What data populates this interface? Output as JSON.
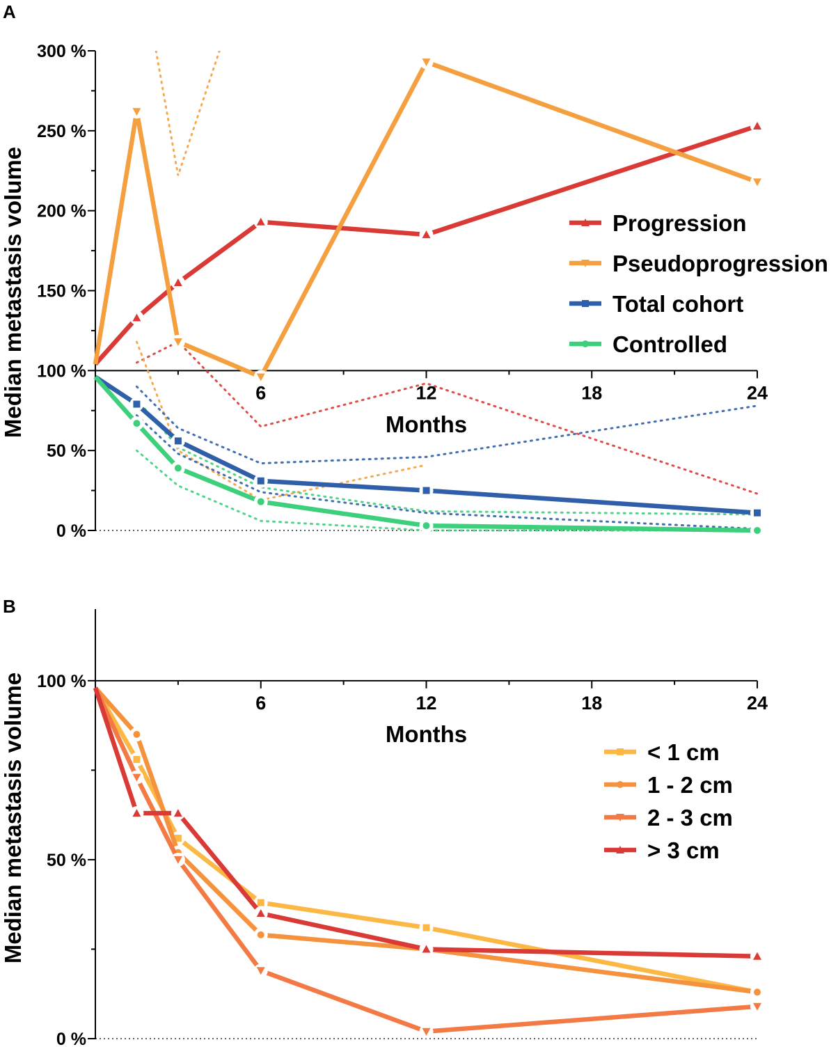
{
  "chart_data": [
    {
      "panel": "A",
      "type": "line",
      "xlabel": "Months",
      "ylabel": "Median metastasis volume",
      "x_ticks": [
        6,
        12,
        18,
        24
      ],
      "x_tick_labels": [
        "6",
        "12",
        "18",
        "24"
      ],
      "xlim": [
        0,
        24
      ],
      "y_ticks": [
        0,
        50,
        100,
        150,
        200,
        250,
        300
      ],
      "y_tick_labels": [
        "0 %",
        "50 %",
        "100 %",
        "150 %",
        "200 %",
        "250 %",
        "300 %"
      ],
      "ylim": [
        0,
        300
      ],
      "x_axis_at": 100,
      "legend_position": "center-right",
      "series": [
        {
          "name": "Progression",
          "color": "#d93a35",
          "marker": "triangle-up",
          "x": [
            0,
            1.5,
            3,
            6,
            12,
            24
          ],
          "y": [
            104,
            133,
            155,
            193,
            185,
            253
          ],
          "ci_lower": {
            "x": [
              1.5,
              3,
              6,
              12,
              24
            ],
            "y": [
              105,
              118,
              65,
              92,
              23
            ]
          }
        },
        {
          "name": "Pseudoprogression",
          "color": "#f5a040",
          "marker": "triangle-down",
          "x": [
            0,
            1.5,
            3,
            6,
            12,
            24
          ],
          "y": [
            104,
            262,
            118,
            96,
            293,
            218
          ],
          "ci_upper": {
            "x": [
              2.2,
              3,
              4.5
            ],
            "y": [
              300,
              222,
              300
            ]
          },
          "ci_lower": {
            "x": [
              1.5,
              3,
              6,
              12
            ],
            "y": [
              118,
              50,
              19,
              41
            ]
          }
        },
        {
          "name": "Total cohort",
          "color": "#2f5fa8",
          "marker": "square",
          "x": [
            0,
            1.5,
            3,
            6,
            12,
            24
          ],
          "y": [
            96,
            79,
            56,
            31,
            25,
            11
          ],
          "ci_upper": {
            "x": [
              1.5,
              3,
              6,
              12,
              24
            ],
            "y": [
              90,
              64,
              42,
              46,
              78
            ]
          },
          "ci_lower": {
            "x": [
              1.5,
              3,
              6,
              12,
              24
            ],
            "y": [
              72,
              48,
              24,
              11,
              1
            ]
          }
        },
        {
          "name": "Controlled",
          "color": "#3ecf7c",
          "marker": "circle",
          "x": [
            0,
            1.5,
            3,
            6,
            12,
            24
          ],
          "y": [
            96,
            67,
            39,
            18,
            3,
            0
          ],
          "ci_upper": {
            "x": [
              1.5,
              3,
              6,
              12,
              24
            ],
            "y": [
              82,
              52,
              27,
              12,
              10
            ]
          },
          "ci_lower": {
            "x": [
              1.5,
              3,
              6,
              12,
              24
            ],
            "y": [
              50,
              28,
              6,
              0,
              0
            ]
          }
        }
      ]
    },
    {
      "panel": "B",
      "type": "line",
      "xlabel": "Months",
      "ylabel": "Median metastasis volume",
      "x_ticks": [
        6,
        12,
        18,
        24
      ],
      "x_tick_labels": [
        "6",
        "12",
        "18",
        "24"
      ],
      "xlim": [
        0,
        24
      ],
      "y_ticks": [
        0,
        50,
        100
      ],
      "y_tick_labels": [
        "0 %",
        "50 %",
        "100 %"
      ],
      "ylim": [
        0,
        120
      ],
      "x_axis_at": 100,
      "legend_position": "right",
      "series": [
        {
          "name": "< 1 cm",
          "color": "#fbb845",
          "marker": "square",
          "x": [
            0,
            1.5,
            3,
            6,
            12,
            24
          ],
          "y": [
            98,
            78,
            56,
            38,
            31,
            13
          ]
        },
        {
          "name": "1 - 2 cm",
          "color": "#f5923e",
          "marker": "circle",
          "x": [
            0,
            1.5,
            3,
            6,
            12,
            24
          ],
          "y": [
            98,
            85,
            52,
            29,
            25,
            13
          ]
        },
        {
          "name": "2 - 3 cm",
          "color": "#f37a45",
          "marker": "triangle-down",
          "x": [
            0,
            1.5,
            3,
            6,
            12,
            24
          ],
          "y": [
            98,
            73,
            50,
            19,
            2,
            9
          ]
        },
        {
          "name": "> 3 cm",
          "color": "#d93a35",
          "marker": "triangle-up",
          "x": [
            0,
            1.5,
            3,
            6,
            12,
            24
          ],
          "y": [
            98,
            63,
            63,
            35,
            25,
            23
          ]
        }
      ]
    }
  ]
}
